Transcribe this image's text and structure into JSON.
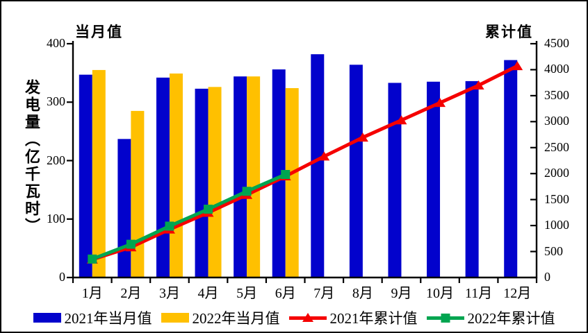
{
  "window": {
    "background": "#FFFFFF",
    "border_color": "#000000"
  },
  "chart_data": {
    "type": "combo-bar-line",
    "categories": [
      "1月",
      "2月",
      "3月",
      "4月",
      "5月",
      "6月",
      "7月",
      "8月",
      "9月",
      "10月",
      "11月",
      "12月"
    ],
    "left_axis": {
      "title": "当月值",
      "label": "发电量（亿千瓦时）",
      "min": 0,
      "max": 400,
      "ticks": [
        0,
        100,
        200,
        300,
        400
      ]
    },
    "right_axis": {
      "title": "累计值",
      "min": 0,
      "max": 4500,
      "ticks": [
        0,
        500,
        1000,
        1500,
        2000,
        2500,
        3000,
        3500,
        4000,
        4500
      ]
    },
    "series": [
      {
        "name": "2021年当月值",
        "type": "bar",
        "axis": "left",
        "color": "#0202CC",
        "marker": "none",
        "values": [
          347,
          237,
          342,
          323,
          344,
          356,
          382,
          364,
          333,
          335,
          336,
          372
        ]
      },
      {
        "name": "2022年当月值",
        "type": "bar",
        "axis": "left",
        "color": "#FFC000",
        "marker": "none",
        "values": [
          355,
          285,
          349,
          326,
          344,
          324
        ]
      },
      {
        "name": "2021年累计值",
        "type": "line",
        "axis": "right",
        "color": "#F50000",
        "marker": "triangle",
        "values": [
          347,
          584,
          926,
          1249,
          1593,
          1949,
          2331,
          2695,
          3028,
          3363,
          3699,
          4071
        ]
      },
      {
        "name": "2022年累计值",
        "type": "line",
        "axis": "right",
        "color": "#00A550",
        "marker": "square",
        "values": [
          355,
          640,
          989,
          1315,
          1659,
          1983
        ]
      }
    ],
    "legend_position": "bottom",
    "grid": false
  }
}
